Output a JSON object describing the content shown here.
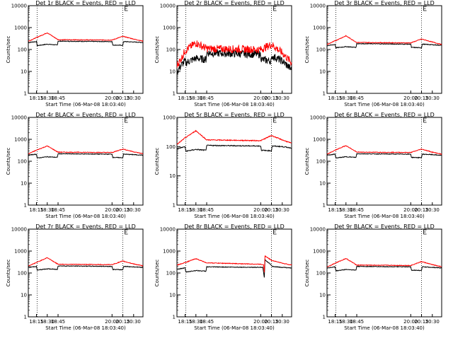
{
  "colors": {
    "events": "#000000",
    "lld": "#ff0000",
    "background": "#ffffff"
  },
  "chart_data": [
    {
      "type": "line",
      "title": "Det 1r BLACK = Events, RED = LLD",
      "xlabel": "Start Time (06-Mar-08 18:03:40)",
      "ylabel": "Counts/sec",
      "yscale": "log",
      "ylim": [
        1,
        10000
      ],
      "xlim": [
        "18:03:40",
        "20:43:00"
      ],
      "xticks": [
        "18:15",
        "18:30",
        "18:45",
        "20:00",
        "20:15",
        "20:30"
      ],
      "yticks": [
        "1",
        "10",
        "100",
        "1000",
        "10000"
      ],
      "grid": false,
      "legend": "none",
      "annotations": [
        "vertical dotted lines at 18:16 and 20:15",
        "E marker at top near 20:18"
      ],
      "series": [
        {
          "color": "#000000",
          "x": [
            "18:04",
            "18:15",
            "18:16",
            "18:30",
            "18:44",
            "18:45",
            "20:00",
            "20:01",
            "20:15",
            "20:16",
            "20:30",
            "20:43"
          ],
          "y": [
            210,
            230,
            150,
            175,
            160,
            240,
            230,
            160,
            155,
            230,
            220,
            210
          ]
        },
        {
          "color": "#ff0000",
          "x": [
            "18:04",
            "18:15",
            "18:30",
            "18:45",
            "20:00",
            "20:15",
            "20:30",
            "20:43"
          ],
          "y": [
            240,
            350,
            580,
            280,
            270,
            400,
            300,
            240
          ]
        }
      ]
    },
    {
      "type": "line",
      "title": "Det 2r BLACK = Events, RED = LLD",
      "xlabel": "Start Time (06-Mar-08 18:03:40)",
      "ylabel": "Counts/sec",
      "yscale": "log",
      "ylim": [
        1,
        10000
      ],
      "xlim": [
        "18:03:40",
        "20:43:00"
      ],
      "xticks": [
        "18:15",
        "18:30",
        "18:45",
        "20:00",
        "20:15",
        "20:30"
      ],
      "yticks": [
        "1",
        "10",
        "100",
        "1000",
        "10000"
      ],
      "grid": false,
      "legend": "none",
      "annotations": [
        "vertical dotted lines at 18:16 and 20:15",
        "E marker at top near 20:18"
      ],
      "series": [
        {
          "color": "#000000",
          "x": [
            "18:04",
            "18:10",
            "18:15",
            "18:16",
            "18:30",
            "18:44",
            "18:45",
            "20:00",
            "20:01",
            "20:15",
            "20:16",
            "20:30",
            "20:43"
          ],
          "y": [
            10,
            20,
            30,
            25,
            40,
            35,
            70,
            60,
            35,
            30,
            50,
            30,
            12
          ]
        },
        {
          "color": "#ff0000",
          "x": [
            "18:04",
            "18:10",
            "18:15",
            "18:30",
            "18:45",
            "20:00",
            "20:15",
            "20:30",
            "20:43"
          ],
          "y": [
            20,
            40,
            90,
            200,
            110,
            100,
            170,
            70,
            25
          ]
        }
      ]
    },
    {
      "type": "line",
      "title": "Det 3r BLACK = Events, RED = LLD",
      "xlabel": "Start Time (06-Mar-08 18:03:40)",
      "ylabel": "Counts/sec",
      "yscale": "log",
      "ylim": [
        1,
        10000
      ],
      "xlim": [
        "18:03:40",
        "20:43:00"
      ],
      "xticks": [
        "18:15",
        "18:30",
        "18:45",
        "20:00",
        "20:15",
        "20:30"
      ],
      "yticks": [
        "1",
        "10",
        "100",
        "1000",
        "10000"
      ],
      "grid": false,
      "legend": "none",
      "annotations": [
        "vertical dotted lines at 18:16 and 20:15",
        "E marker at top near 20:18"
      ],
      "series": [
        {
          "color": "#000000",
          "x": [
            "18:04",
            "18:15",
            "18:16",
            "18:30",
            "18:44",
            "18:45",
            "20:00",
            "20:01",
            "20:15",
            "20:16",
            "20:30",
            "20:43"
          ],
          "y": [
            150,
            170,
            120,
            135,
            125,
            185,
            175,
            125,
            120,
            175,
            165,
            155
          ]
        },
        {
          "color": "#ff0000",
          "x": [
            "18:04",
            "18:15",
            "18:30",
            "18:45",
            "20:00",
            "20:15",
            "20:30",
            "20:43"
          ],
          "y": [
            170,
            250,
            420,
            210,
            200,
            300,
            220,
            170
          ]
        }
      ]
    },
    {
      "type": "line",
      "title": "Det 4r BLACK = Events, RED = LLD",
      "xlabel": "Start Time (06-Mar-08 18:03:40)",
      "ylabel": "Counts/sec",
      "yscale": "log",
      "ylim": [
        1,
        10000
      ],
      "xlim": [
        "18:03:40",
        "20:43:00"
      ],
      "xticks": [
        "18:15",
        "18:30",
        "18:45",
        "20:00",
        "20:15",
        "20:30"
      ],
      "yticks": [
        "1",
        "10",
        "100",
        "1000",
        "10000"
      ],
      "grid": false,
      "legend": "none",
      "annotations": [
        "vertical dotted lines at 18:16 and 20:15",
        "E marker at top near 20:18"
      ],
      "series": [
        {
          "color": "#000000",
          "x": [
            "18:04",
            "18:15",
            "18:16",
            "18:30",
            "18:44",
            "18:45",
            "20:00",
            "20:01",
            "20:15",
            "20:16",
            "20:30",
            "20:43"
          ],
          "y": [
            190,
            210,
            140,
            160,
            150,
            220,
            210,
            150,
            145,
            210,
            200,
            190
          ]
        },
        {
          "color": "#ff0000",
          "x": [
            "18:04",
            "18:15",
            "18:30",
            "18:45",
            "20:00",
            "20:15",
            "20:30",
            "20:43"
          ],
          "y": [
            220,
            320,
            500,
            260,
            250,
            360,
            270,
            220
          ]
        }
      ]
    },
    {
      "type": "line",
      "title": "Det 5r BLACK = Events, RED = LLD",
      "xlabel": "Start Time (06-Mar-08 18:03:40)",
      "ylabel": "Counts/sec",
      "yscale": "log",
      "ylim": [
        1,
        1000
      ],
      "xlim": [
        "18:03:40",
        "20:43:00"
      ],
      "xticks": [
        "18:15",
        "18:30",
        "18:45",
        "20:00",
        "20:15",
        "20:30"
      ],
      "yticks": [
        "1",
        "10",
        "100",
        "1000"
      ],
      "grid": false,
      "legend": "none",
      "annotations": [
        "vertical dotted lines at 18:16 and 20:15",
        "E marker at top near 20:18"
      ],
      "series": [
        {
          "color": "#000000",
          "x": [
            "18:04",
            "18:15",
            "18:16",
            "18:30",
            "18:44",
            "18:45",
            "20:00",
            "20:01",
            "20:15",
            "20:16",
            "20:30",
            "20:43"
          ],
          "y": [
            85,
            100,
            70,
            80,
            75,
            110,
            105,
            75,
            72,
            105,
            100,
            90
          ]
        },
        {
          "color": "#ff0000",
          "x": [
            "18:04",
            "18:15",
            "18:30",
            "18:45",
            "20:00",
            "20:15",
            "20:30",
            "20:43"
          ],
          "y": [
            120,
            200,
            350,
            170,
            160,
            240,
            170,
            130
          ]
        }
      ]
    },
    {
      "type": "line",
      "title": "Det 6r BLACK = Events, RED = LLD",
      "xlabel": "Start Time (06-Mar-08 18:03:40)",
      "ylabel": "Counts/sec",
      "yscale": "log",
      "ylim": [
        1,
        10000
      ],
      "xlim": [
        "18:03:40",
        "20:43:00"
      ],
      "xticks": [
        "18:15",
        "18:30",
        "18:45",
        "20:00",
        "20:15",
        "20:30"
      ],
      "yticks": [
        "1",
        "10",
        "100",
        "1000",
        "10000"
      ],
      "grid": false,
      "legend": "none",
      "annotations": [
        "vertical dotted lines at 18:16 and 20:15",
        "E marker at top near 20:18"
      ],
      "series": [
        {
          "color": "#000000",
          "x": [
            "18:04",
            "18:15",
            "18:16",
            "18:30",
            "18:44",
            "18:45",
            "20:00",
            "20:01",
            "20:15",
            "20:16",
            "20:30",
            "20:43"
          ],
          "y": [
            190,
            210,
            140,
            160,
            150,
            220,
            210,
            150,
            145,
            210,
            200,
            185
          ]
        },
        {
          "color": "#ff0000",
          "x": [
            "18:04",
            "18:15",
            "18:30",
            "18:45",
            "20:00",
            "20:15",
            "20:30",
            "20:43"
          ],
          "y": [
            210,
            320,
            520,
            260,
            250,
            360,
            260,
            210
          ]
        }
      ]
    },
    {
      "type": "line",
      "title": "Det 7r BLACK = Events, RED = LLD",
      "xlabel": "Start Time (06-Mar-08 18:03:40)",
      "ylabel": "Counts/sec",
      "yscale": "log",
      "ylim": [
        1,
        10000
      ],
      "xlim": [
        "18:03:40",
        "20:43:00"
      ],
      "xticks": [
        "18:15",
        "18:30",
        "18:45",
        "20:00",
        "20:15",
        "20:30"
      ],
      "yticks": [
        "1",
        "10",
        "100",
        "1000",
        "10000"
      ],
      "grid": false,
      "legend": "none",
      "annotations": [
        "vertical dotted lines at 18:16 and 20:15",
        "E marker at top near 20:18"
      ],
      "series": [
        {
          "color": "#000000",
          "x": [
            "18:04",
            "18:15",
            "18:16",
            "18:30",
            "18:44",
            "18:45",
            "20:00",
            "20:01",
            "20:15",
            "20:16",
            "20:30",
            "20:43"
          ],
          "y": [
            180,
            200,
            135,
            155,
            145,
            210,
            200,
            145,
            140,
            200,
            190,
            180
          ]
        },
        {
          "color": "#ff0000",
          "x": [
            "18:04",
            "18:15",
            "18:30",
            "18:45",
            "20:00",
            "20:15",
            "20:30",
            "20:43"
          ],
          "y": [
            210,
            300,
            500,
            250,
            240,
            350,
            260,
            210
          ]
        }
      ]
    },
    {
      "type": "line",
      "title": "Det 8r BLACK = Events, RED = LLD",
      "xlabel": "Start Time (06-Mar-08 18:03:40)",
      "ylabel": "Counts/sec",
      "yscale": "log",
      "ylim": [
        1,
        10000
      ],
      "xlim": [
        "18:03:40",
        "20:43:00"
      ],
      "xticks": [
        "18:15",
        "18:30",
        "18:45",
        "20:00",
        "20:15",
        "20:30"
      ],
      "yticks": [
        "1",
        "10",
        "100",
        "1000",
        "10000"
      ],
      "grid": false,
      "legend": "none",
      "annotations": [
        "vertical dotted lines at 18:16 and 20:15",
        "E marker at top near 20:18",
        "spike dip near 20:05"
      ],
      "series": [
        {
          "color": "#000000",
          "x": [
            "18:04",
            "18:15",
            "18:16",
            "18:30",
            "18:44",
            "18:45",
            "20:03",
            "20:04",
            "20:05",
            "20:06",
            "20:15",
            "20:16",
            "20:30",
            "20:43"
          ],
          "y": [
            150,
            170,
            110,
            130,
            120,
            190,
            180,
            110,
            60,
            400,
            230,
            200,
            180,
            170
          ]
        },
        {
          "color": "#ff0000",
          "x": [
            "18:04",
            "18:15",
            "18:30",
            "18:45",
            "20:00",
            "20:04",
            "20:05",
            "20:06",
            "20:15",
            "20:30",
            "20:43"
          ],
          "y": [
            230,
            300,
            450,
            290,
            250,
            240,
            110,
            600,
            380,
            280,
            230
          ]
        }
      ]
    },
    {
      "type": "line",
      "title": "Det 9r BLACK = Events, RED = LLD",
      "xlabel": "Start Time (06-Mar-08 18:03:40)",
      "ylabel": "Counts/sec",
      "yscale": "log",
      "ylim": [
        1,
        10000
      ],
      "xlim": [
        "18:03:40",
        "20:43:00"
      ],
      "xticks": [
        "18:15",
        "18:30",
        "18:45",
        "20:00",
        "20:15",
        "20:30"
      ],
      "yticks": [
        "1",
        "10",
        "100",
        "1000",
        "10000"
      ],
      "grid": false,
      "legend": "none",
      "annotations": [
        "vertical dotted lines at 18:16 and 20:15",
        "E marker at top near 20:18"
      ],
      "series": [
        {
          "color": "#000000",
          "x": [
            "18:04",
            "18:15",
            "18:16",
            "18:30",
            "18:44",
            "18:45",
            "20:00",
            "20:01",
            "20:15",
            "20:16",
            "20:30",
            "20:43"
          ],
          "y": [
            170,
            190,
            125,
            145,
            135,
            200,
            190,
            135,
            130,
            190,
            180,
            170
          ]
        },
        {
          "color": "#ff0000",
          "x": [
            "18:04",
            "18:15",
            "18:30",
            "18:45",
            "20:00",
            "20:15",
            "20:30",
            "20:43"
          ],
          "y": [
            190,
            280,
            460,
            230,
            220,
            330,
            240,
            190
          ]
        }
      ]
    }
  ]
}
